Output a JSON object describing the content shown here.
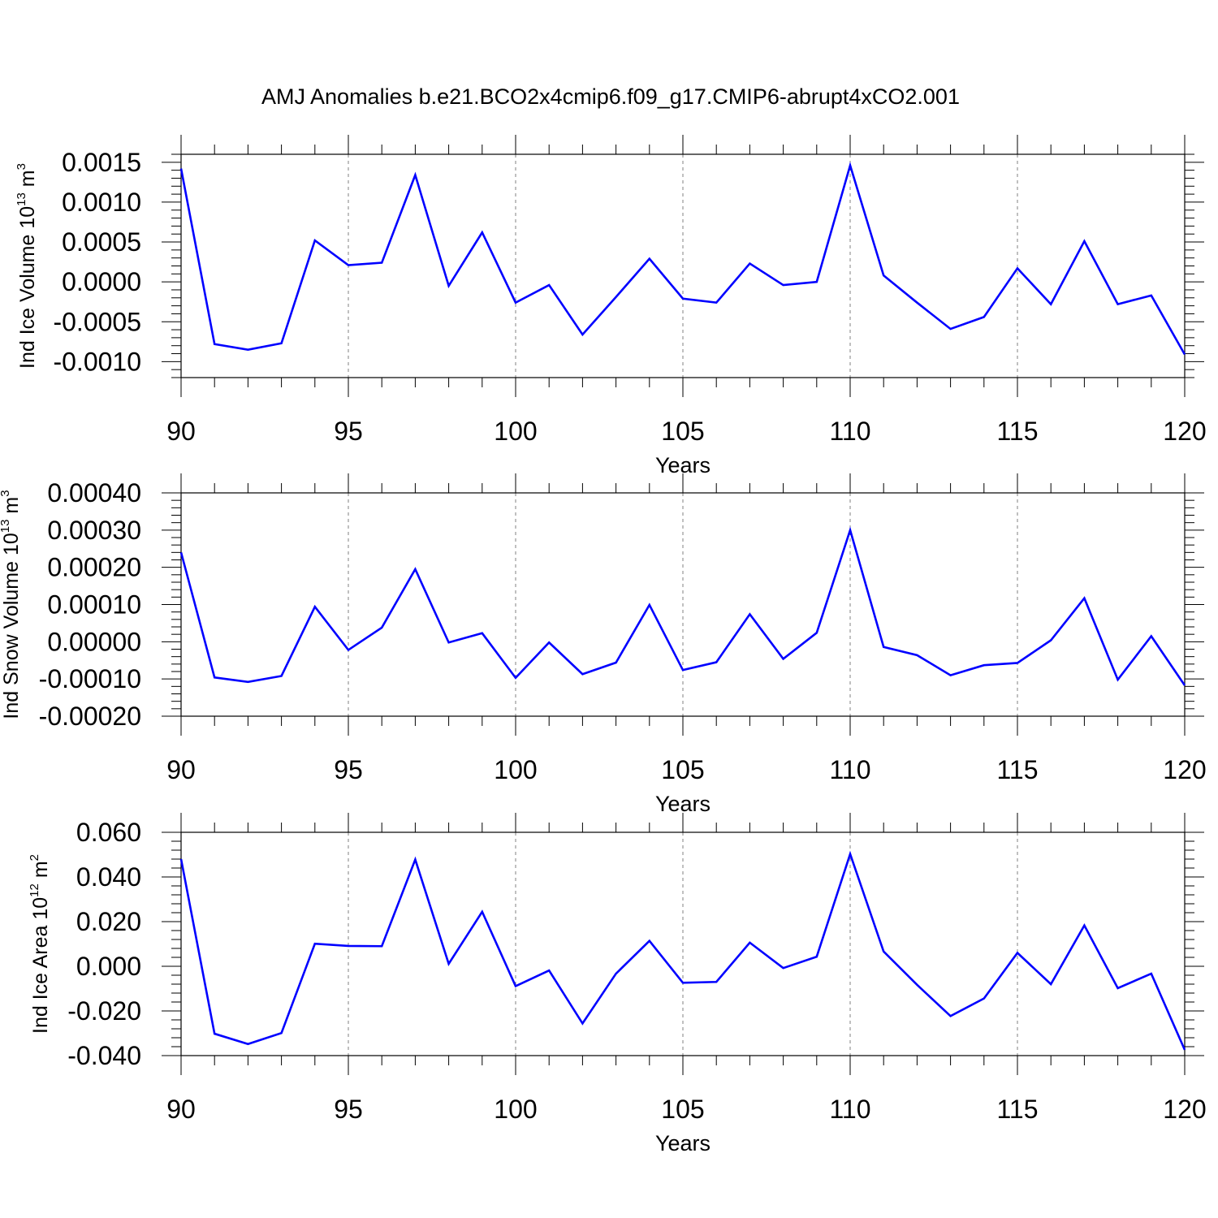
{
  "title": "AMJ Anomalies b.e21.BCO2x4cmip6.f09_g17.CMIP6-abrupt4xCO2.001",
  "colors": {
    "line": "#0000ff",
    "axis": "#000000",
    "grid": "#808080",
    "background": "#ffffff"
  },
  "chart_data": [
    {
      "type": "line",
      "ylabel": {
        "prefix": "Ind Ice Volume 10",
        "exp": "13",
        "unit": " m",
        "unit_exp": "3"
      },
      "xlabel": "Years",
      "xlim": [
        90,
        120
      ],
      "ylim": [
        -0.0012,
        0.0016
      ],
      "xticks": [
        90,
        95,
        100,
        105,
        110,
        115,
        120
      ],
      "xtick_labels": [
        "90",
        "95",
        "100",
        "105",
        "110",
        "115",
        "120"
      ],
      "yticks": [
        -0.001,
        -0.0005,
        0.0,
        0.0005,
        0.001,
        0.0015
      ],
      "ytick_labels": [
        "-0.0010",
        "-0.0005",
        "0.0000",
        "0.0005",
        "0.0010",
        "0.0015"
      ],
      "x": [
        90,
        91,
        92,
        93,
        94,
        95,
        96,
        97,
        98,
        99,
        100,
        101,
        102,
        103,
        104,
        105,
        106,
        107,
        108,
        109,
        110,
        111,
        112,
        113,
        114,
        115,
        116,
        117,
        118,
        119,
        120
      ],
      "series": [
        {
          "name": "Ind Ice Volume",
          "values": [
            0.00142,
            -0.00078,
            -0.00085,
            -0.00077,
            0.00052,
            0.00021,
            0.00024,
            0.00134,
            -5e-05,
            0.00062,
            -0.00026,
            -4e-05,
            -0.00066,
            -0.00019,
            0.00029,
            -0.00021,
            -0.00026,
            0.00023,
            -4e-05,
            0.0,
            0.00146,
            8e-05,
            -0.00026,
            -0.00059,
            -0.00044,
            0.00017,
            -0.00028,
            0.00051,
            -0.00028,
            -0.00017,
            -0.00091
          ]
        }
      ]
    },
    {
      "type": "line",
      "ylabel": {
        "prefix": "Ind Snow Volume 10",
        "exp": "13",
        "unit": " m",
        "unit_exp": "3"
      },
      "xlabel": "Years",
      "xlim": [
        90,
        120
      ],
      "ylim": [
        -0.0002,
        0.0004
      ],
      "xticks": [
        90,
        95,
        100,
        105,
        110,
        115,
        120
      ],
      "xtick_labels": [
        "90",
        "95",
        "100",
        "105",
        "110",
        "115",
        "120"
      ],
      "yticks": [
        -0.0002,
        -0.0001,
        0.0,
        0.0001,
        0.0002,
        0.0003,
        0.0004
      ],
      "ytick_labels": [
        "-0.00020",
        "-0.00010",
        "0.00000",
        "0.00010",
        "0.00020",
        "0.00030",
        "0.00040"
      ],
      "x": [
        90,
        91,
        92,
        93,
        94,
        95,
        96,
        97,
        98,
        99,
        100,
        101,
        102,
        103,
        104,
        105,
        106,
        107,
        108,
        109,
        110,
        111,
        112,
        113,
        114,
        115,
        116,
        117,
        118,
        119,
        120
      ],
      "series": [
        {
          "name": "Ind Snow Volume",
          "values": [
            0.00024,
            -9.6e-05,
            -0.000108,
            -9.2e-05,
            9.4e-05,
            -2.2e-05,
            3.8e-05,
            0.000195,
            -2e-06,
            2.3e-05,
            -9.7e-05,
            -2e-06,
            -8.7e-05,
            -5.6e-05,
            9.9e-05,
            -7.6e-05,
            -5.5e-05,
            7.4e-05,
            -4.6e-05,
            2.4e-05,
            0.0003,
            -1.4e-05,
            -3.6e-05,
            -9e-05,
            -6.3e-05,
            -5.7e-05,
            4e-06,
            0.000117,
            -0.000102,
            1.5e-05,
            -0.000117
          ]
        }
      ]
    },
    {
      "type": "line",
      "ylabel": {
        "prefix": "Ind Ice Area 10",
        "exp": "12",
        "unit": " m",
        "unit_exp": "2"
      },
      "xlabel": "Years",
      "xlim": [
        90,
        120
      ],
      "ylim": [
        -0.04,
        0.06
      ],
      "xticks": [
        90,
        95,
        100,
        105,
        110,
        115,
        120
      ],
      "xtick_labels": [
        "90",
        "95",
        "100",
        "105",
        "110",
        "115",
        "120"
      ],
      "yticks": [
        -0.04,
        -0.02,
        0.0,
        0.02,
        0.04,
        0.06
      ],
      "ytick_labels": [
        "-0.040",
        "-0.020",
        "0.000",
        "0.020",
        "0.040",
        "0.060"
      ],
      "x": [
        90,
        91,
        92,
        93,
        94,
        95,
        96,
        97,
        98,
        99,
        100,
        101,
        102,
        103,
        104,
        105,
        106,
        107,
        108,
        109,
        110,
        111,
        112,
        113,
        114,
        115,
        116,
        117,
        118,
        119,
        120
      ],
      "series": [
        {
          "name": "Ind Ice Area",
          "values": [
            0.048,
            -0.0302,
            -0.0348,
            -0.0299,
            0.0101,
            0.0091,
            0.009,
            0.0478,
            0.0011,
            0.0244,
            -0.0089,
            -0.0019,
            -0.0256,
            -0.0033,
            0.0114,
            -0.0074,
            -0.007,
            0.0106,
            -0.0008,
            0.0043,
            0.0503,
            0.0066,
            -0.0083,
            -0.0223,
            -0.0144,
            0.006,
            -0.008,
            0.0183,
            -0.0098,
            -0.0033,
            -0.0374
          ]
        }
      ]
    }
  ]
}
